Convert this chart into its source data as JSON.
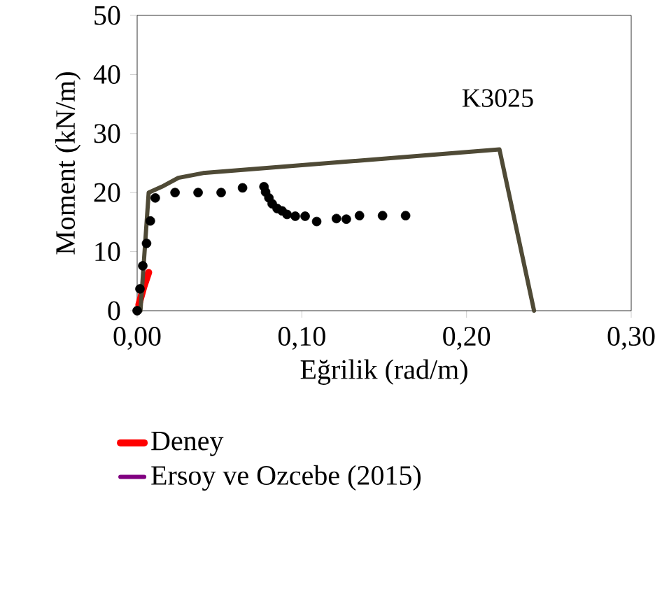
{
  "chart_data": {
    "type": "line",
    "xlabel": "Eğrilik (rad/m)",
    "ylabel": "Moment (kN/m)",
    "annotations": [
      "K3025"
    ],
    "xlim": [
      0,
      0.3
    ],
    "xticks": [
      {
        "value": 0,
        "label": "0,00"
      },
      {
        "value": 0.1,
        "label": "0,10"
      },
      {
        "value": 0.2,
        "label": "0,20"
      },
      {
        "value": 0.3,
        "label": "0,30"
      }
    ],
    "ylim": [
      0,
      50
    ],
    "yticks": [
      0,
      10,
      20,
      30,
      40,
      50
    ],
    "legend": "bottom",
    "series": [
      {
        "name": "Deney",
        "color": "#ff0000",
        "marker": "none",
        "x": [
          0.001,
          0.004,
          0.007
        ],
        "values": [
          1,
          4,
          6.5
        ]
      },
      {
        "name": "Ersoy ve Ozcebe (2015)",
        "color": "#800080",
        "marker": "none"
      },
      {
        "color": "#4f4a36",
        "marker": "none",
        "x": [
          0.002,
          0.007,
          0.015,
          0.025,
          0.04,
          0.22,
          0.241
        ],
        "values": [
          0,
          20,
          21,
          22.5,
          23.3,
          27.3,
          0
        ]
      },
      {
        "type": "scatter",
        "color": "#000000",
        "marker": "circle",
        "x": [
          0,
          0.0017,
          0.0034,
          0.0057,
          0.008,
          0.011,
          0.023,
          0.037,
          0.051,
          0.064,
          0.077,
          0.078,
          0.08,
          0.082,
          0.085,
          0.088,
          0.091,
          0.096,
          0.102,
          0.109,
          0.121,
          0.127,
          0.135,
          0.149,
          0.163
        ],
        "values": [
          0,
          3.7,
          7.6,
          11.4,
          15.2,
          19.1,
          20,
          20,
          20,
          20.8,
          21,
          20.1,
          19.1,
          18.1,
          17.3,
          16.9,
          16.3,
          16,
          16,
          15.1,
          15.6,
          15.5,
          16.1,
          16.1,
          16.1
        ]
      }
    ]
  }
}
